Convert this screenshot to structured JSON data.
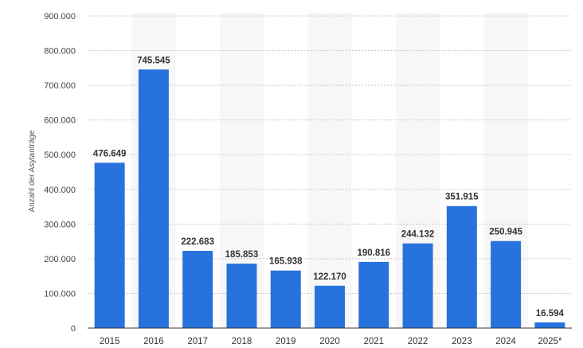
{
  "chart_data": {
    "type": "bar",
    "title": "",
    "xlabel": "",
    "ylabel": "Anzahl der Asylanträge",
    "categories": [
      "2015",
      "2016",
      "2017",
      "2018",
      "2019",
      "2020",
      "2021",
      "2022",
      "2023",
      "2024",
      "2025*"
    ],
    "values": [
      476649,
      745545,
      222683,
      185853,
      165938,
      122170,
      190816,
      244132,
      351915,
      250945,
      16594
    ],
    "value_labels": [
      "476.649",
      "745.545",
      "222.683",
      "185.853",
      "165.938",
      "122.170",
      "190.816",
      "244.132",
      "351.915",
      "250.945",
      "16.594"
    ],
    "ylim": [
      0,
      900000
    ],
    "yticks": [
      0,
      100000,
      200000,
      300000,
      400000,
      500000,
      600000,
      700000,
      800000,
      900000
    ],
    "ytick_labels": [
      "0",
      "100.000",
      "200.000",
      "300.000",
      "400.000",
      "500.000",
      "600.000",
      "700.000",
      "800.000",
      "900.000"
    ],
    "grid": true,
    "legend": "none",
    "bar_color": "#2872dd"
  }
}
